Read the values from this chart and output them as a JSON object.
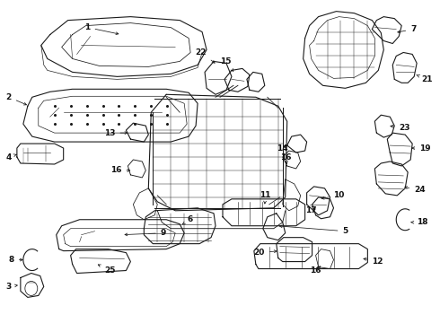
{
  "bg": "#ffffff",
  "lc": "#1a1a1a",
  "tc": "#111111",
  "fs": 6.5,
  "lw": 0.8,
  "fig_w": 4.9,
  "fig_h": 3.6,
  "dpi": 100
}
